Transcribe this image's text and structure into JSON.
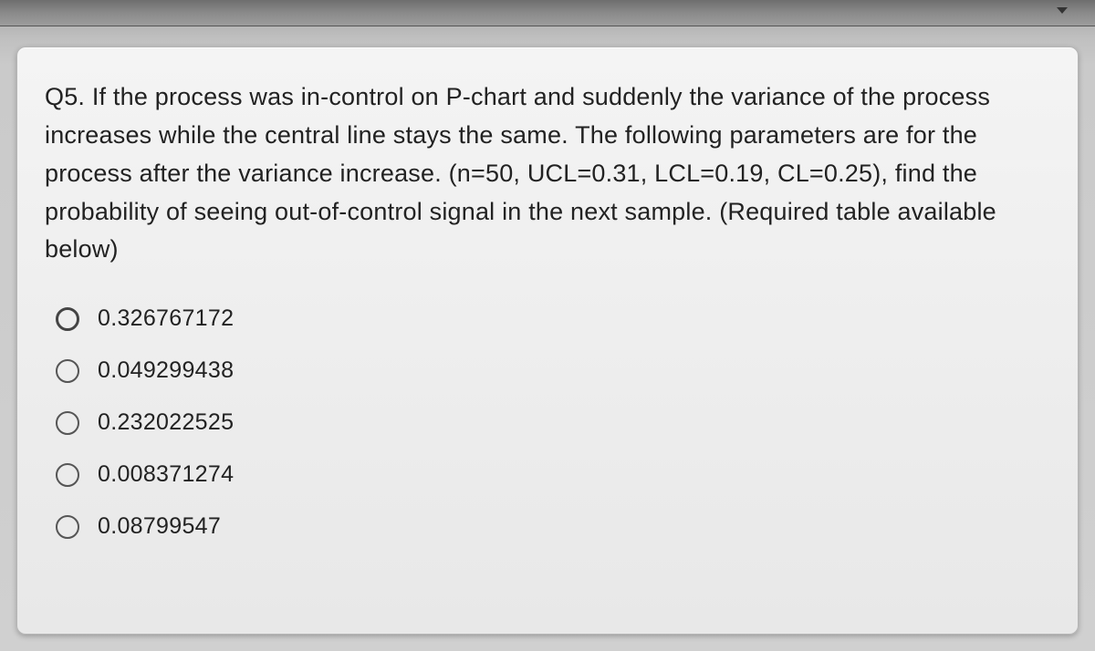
{
  "question": {
    "text": "Q5. If the process was in-control on P-chart and suddenly the variance of the process increases while the central line stays the same. The following parameters are for the process after the variance increase. (n=50, UCL=0.31, LCL=0.19, CL=0.25), find the probability of seeing out-of-control signal in the next sample. (Required table available below)"
  },
  "options": [
    {
      "label": "0.326767172"
    },
    {
      "label": "0.049299438"
    },
    {
      "label": "0.232022525"
    },
    {
      "label": "0.008371274"
    },
    {
      "label": "0.08799547"
    }
  ]
}
